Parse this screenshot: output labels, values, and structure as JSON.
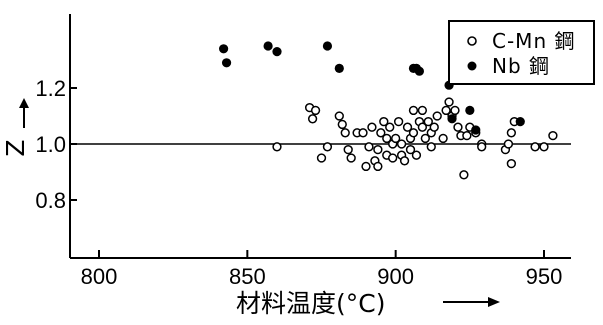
{
  "chart_data": {
    "type": "scatter",
    "xlabel": "材料温度(°C)",
    "ylabel": "Z",
    "xlim": [
      800,
      960
    ],
    "ylim": [
      0.65,
      1.42
    ],
    "xticks": [
      800,
      850,
      900,
      950
    ],
    "yticks": [
      0.8,
      1.0,
      1.2
    ],
    "xtick_labels": [
      "800",
      "850",
      "900",
      "950"
    ],
    "ytick_labels": [
      "0.8",
      "1.0",
      "1.2"
    ],
    "reference_line": {
      "y": 1.0
    },
    "legend": {
      "placement": "top-right"
    },
    "series": [
      {
        "name": "C-Mn 鋼",
        "marker": "open-circle",
        "color": "#000000",
        "points": [
          [
            860,
            0.99
          ],
          [
            871,
            1.13
          ],
          [
            872,
            1.09
          ],
          [
            873,
            1.12
          ],
          [
            875,
            0.95
          ],
          [
            877,
            0.99
          ],
          [
            881,
            1.1
          ],
          [
            882,
            1.07
          ],
          [
            883,
            1.04
          ],
          [
            884,
            0.98
          ],
          [
            885,
            0.95
          ],
          [
            887,
            1.04
          ],
          [
            889,
            1.04
          ],
          [
            890,
            0.92
          ],
          [
            891,
            0.99
          ],
          [
            892,
            1.06
          ],
          [
            893,
            0.94
          ],
          [
            894,
            0.98
          ],
          [
            894,
            0.92
          ],
          [
            895,
            1.04
          ],
          [
            896,
            1.08
          ],
          [
            897,
            1.02
          ],
          [
            897,
            0.96
          ],
          [
            898,
            1.06
          ],
          [
            899,
            1.0
          ],
          [
            899,
            0.95
          ],
          [
            900,
            1.02
          ],
          [
            901,
            1.08
          ],
          [
            902,
            0.96
          ],
          [
            902,
            1.0
          ],
          [
            903,
            0.94
          ],
          [
            904,
            1.06
          ],
          [
            905,
            1.02
          ],
          [
            905,
            0.98
          ],
          [
            906,
            1.04
          ],
          [
            906,
            1.12
          ],
          [
            907,
            0.96
          ],
          [
            908,
            1.08
          ],
          [
            909,
            1.06
          ],
          [
            909,
            1.12
          ],
          [
            910,
            1.02
          ],
          [
            911,
            1.08
          ],
          [
            912,
            0.99
          ],
          [
            912,
            1.04
          ],
          [
            913,
            1.06
          ],
          [
            914,
            1.1
          ],
          [
            916,
            1.02
          ],
          [
            917,
            1.12
          ],
          [
            918,
            1.15
          ],
          [
            919,
            1.1
          ],
          [
            920,
            1.12
          ],
          [
            921,
            1.06
          ],
          [
            922,
            1.03
          ],
          [
            923,
            0.89
          ],
          [
            924,
            1.03
          ],
          [
            925,
            1.06
          ],
          [
            927,
            1.04
          ],
          [
            929,
            1.0
          ],
          [
            929,
            0.99
          ],
          [
            937,
            0.98
          ],
          [
            938,
            1.0
          ],
          [
            939,
            1.04
          ],
          [
            939,
            0.93
          ],
          [
            940,
            1.08
          ],
          [
            947,
            0.99
          ],
          [
            950,
            0.99
          ],
          [
            953,
            1.03
          ]
        ]
      },
      {
        "name": "Nb 鋼",
        "marker": "filled-circle",
        "color": "#000000",
        "points": [
          [
            842,
            1.34
          ],
          [
            843,
            1.29
          ],
          [
            857,
            1.35
          ],
          [
            860,
            1.33
          ],
          [
            877,
            1.35
          ],
          [
            881,
            1.27
          ],
          [
            906,
            1.27
          ],
          [
            907,
            1.27
          ],
          [
            908,
            1.26
          ],
          [
            918,
            1.21
          ],
          [
            919,
            1.09
          ],
          [
            925,
            1.12
          ],
          [
            927,
            1.05
          ],
          [
            942,
            1.08
          ]
        ]
      }
    ]
  }
}
